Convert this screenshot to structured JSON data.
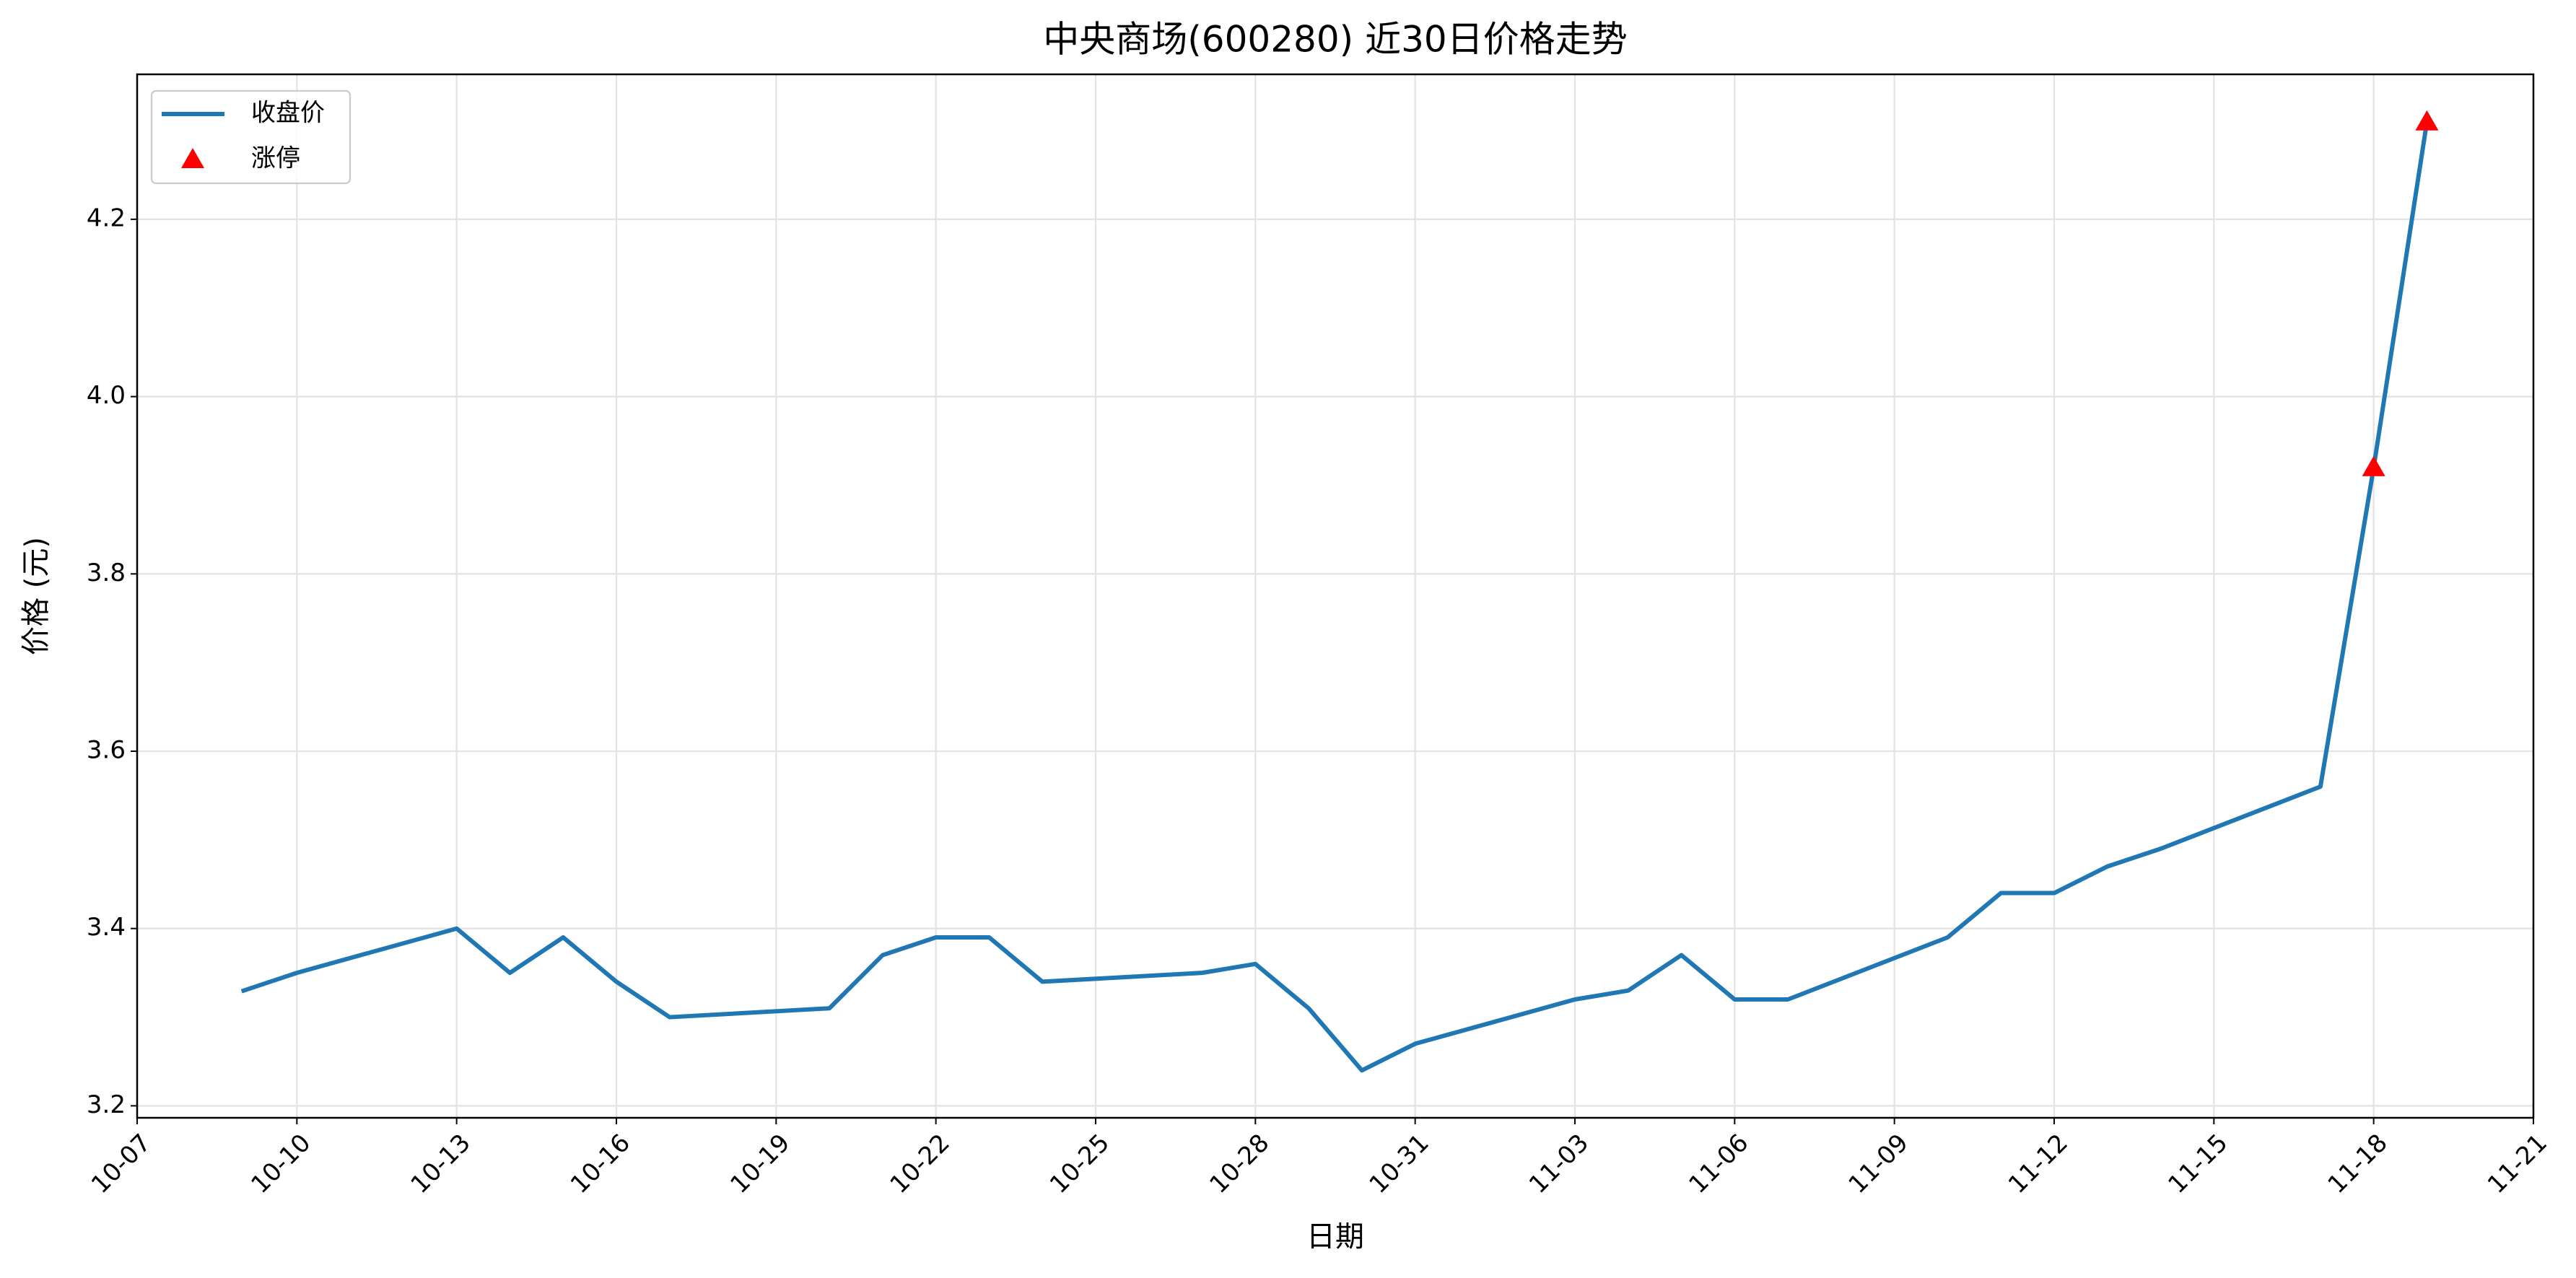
{
  "chart_data": {
    "type": "line",
    "title": "中央商场(600280) 近30日价格走势",
    "xlabel": "日期",
    "ylabel": "价格 (元)",
    "series": [
      {
        "name": "收盘价",
        "color": "#1f77b4",
        "type": "line",
        "x": [
          "10-09",
          "10-10",
          "10-13",
          "10-14",
          "10-15",
          "10-16",
          "10-17",
          "10-20",
          "10-21",
          "10-22",
          "10-23",
          "10-24",
          "10-27",
          "10-28",
          "10-29",
          "10-30",
          "10-31",
          "11-03",
          "11-04",
          "11-05",
          "11-06",
          "11-07",
          "11-10",
          "11-11",
          "11-12",
          "11-13",
          "11-14",
          "11-17",
          "11-18",
          "11-19"
        ],
        "values": [
          3.33,
          3.35,
          3.4,
          3.35,
          3.39,
          3.34,
          3.3,
          3.31,
          3.37,
          3.39,
          3.39,
          3.34,
          3.35,
          3.36,
          3.31,
          3.24,
          3.27,
          3.32,
          3.33,
          3.37,
          3.32,
          3.32,
          3.39,
          3.44,
          3.44,
          3.47,
          3.49,
          3.56,
          3.92,
          4.31
        ]
      },
      {
        "name": "涨停",
        "color": "#ff0000",
        "type": "scatter",
        "x": [
          "11-18",
          "11-19"
        ],
        "values": [
          3.92,
          4.31
        ]
      }
    ],
    "xlim": [
      "10-07",
      "11-21"
    ],
    "xticks": [
      "10-07",
      "10-10",
      "10-13",
      "10-16",
      "10-19",
      "10-22",
      "10-25",
      "10-28",
      "10-31",
      "11-03",
      "11-06",
      "11-09",
      "11-12",
      "11-15",
      "11-18",
      "11-21"
    ],
    "ylim": [
      3.1865,
      4.3635
    ],
    "yticks": [
      3.2,
      3.4,
      3.6,
      3.8,
      {
        "value": 4,
        "label": "4.0"
      },
      4.2
    ],
    "grid": true,
    "legend": "upper left"
  }
}
